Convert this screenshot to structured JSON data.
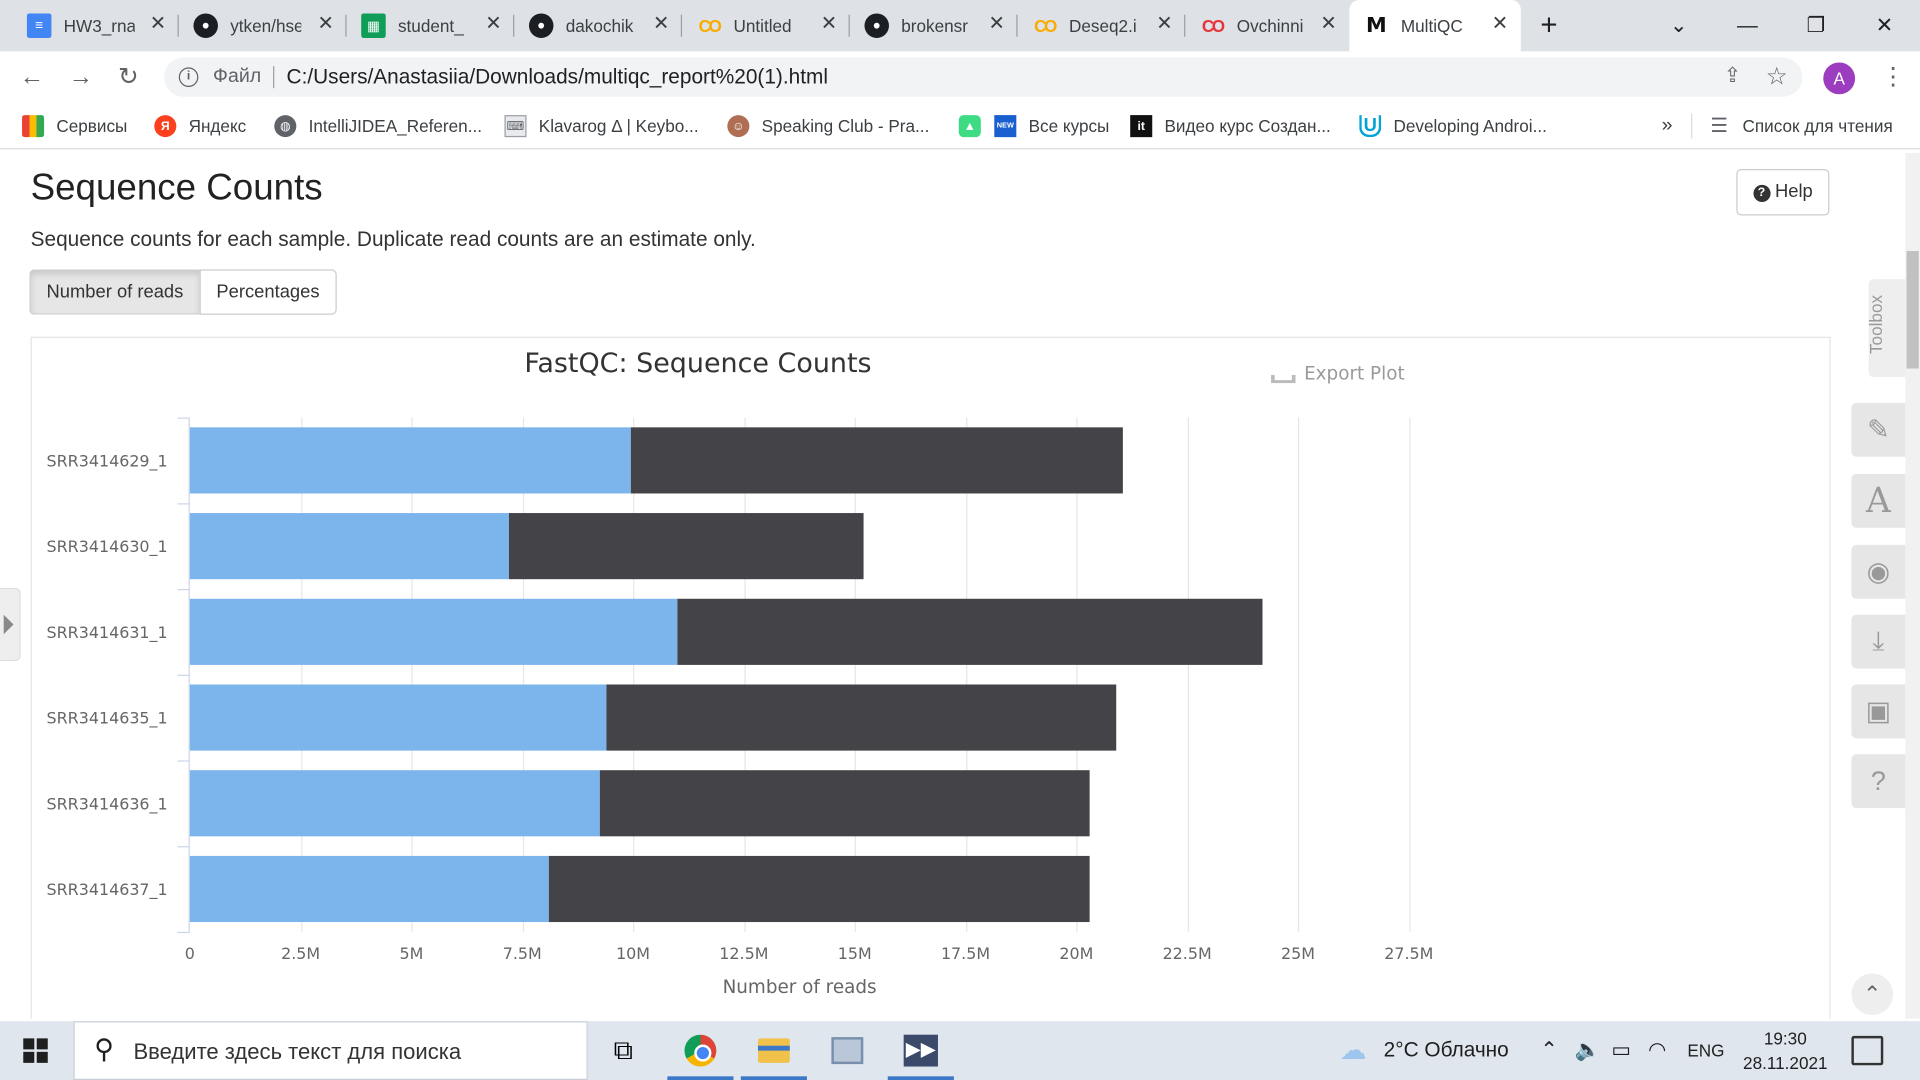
{
  "browser": {
    "tabs": [
      {
        "title": "HW3_rna",
        "favicon": "docs-icon",
        "active": false
      },
      {
        "title": "ytken/hse",
        "favicon": "github-icon",
        "active": false
      },
      {
        "title": "student_",
        "favicon": "sheets-icon",
        "active": false
      },
      {
        "title": "dakochik",
        "favicon": "github-icon",
        "active": false
      },
      {
        "title": "Untitled",
        "favicon": "colab-icon",
        "active": false
      },
      {
        "title": "brokensr",
        "favicon": "github-icon",
        "active": false
      },
      {
        "title": "Deseq2.i",
        "favicon": "colab-icon",
        "active": false
      },
      {
        "title": "Ovchinni",
        "favicon": "colab-icon-red",
        "active": false
      },
      {
        "title": "MultiQC",
        "favicon": "multiqc-icon",
        "active": true
      }
    ],
    "new_tab": "+",
    "address": {
      "scheme_label": "Файл",
      "url": "C:/Users/Anastasiia/Downloads/multiqc_report%20(1).html"
    },
    "profile_initial": "A",
    "bookmarks": [
      {
        "label": "Сервисы",
        "icon": "apps-grid-icon"
      },
      {
        "label": "Яндекс",
        "icon": "yandex-icon"
      },
      {
        "label": "IntelliJIDEA_Referen...",
        "icon": "globe-icon"
      },
      {
        "label": "Klavarog Δ | Keybo...",
        "icon": "keyboard-icon"
      },
      {
        "label": "Speaking Club - Pra...",
        "icon": "speaking-club-icon"
      },
      {
        "label": "",
        "icon": "android-icon"
      },
      {
        "label": "Все курсы",
        "icon": "new-badge-icon"
      },
      {
        "label": "Видео курс Создан...",
        "icon": "it-icon"
      },
      {
        "label": "Developing Androi...",
        "icon": "udacity-icon"
      }
    ],
    "bookmarks_overflow": "»",
    "reading_list": "Список для чтения"
  },
  "page": {
    "title": "Sequence Counts",
    "description": "Sequence counts for each sample. Duplicate read counts are an estimate only.",
    "help_label": "Help",
    "toggle": {
      "active": "Number of reads",
      "inactive": "Percentages"
    },
    "export_label": "Export Plot",
    "toolbox_label": "Toolbox"
  },
  "chart_data": {
    "type": "bar",
    "orientation": "horizontal",
    "stacked": true,
    "title": "FastQC: Sequence Counts",
    "xlabel": "Number of reads",
    "ylabel": "",
    "xlim": [
      0,
      27500000
    ],
    "xticks": [
      "0",
      "2.5M",
      "5M",
      "7.5M",
      "10M",
      "12.5M",
      "15M",
      "17.5M",
      "20M",
      "22.5M",
      "25M",
      "27.5M"
    ],
    "grid": true,
    "categories": [
      "SRR3414629_1",
      "SRR3414630_1",
      "SRR3414631_1",
      "SRR3414635_1",
      "SRR3414636_1",
      "SRR3414637_1"
    ],
    "series": [
      {
        "color": "#7cb5ec",
        "values": [
          9950000,
          7200000,
          11000000,
          9400000,
          9250000,
          8100000
        ]
      },
      {
        "color": "#434348",
        "values": [
          11100000,
          8000000,
          13200000,
          11500000,
          11050000,
          12200000
        ]
      }
    ]
  },
  "taskbar": {
    "search_placeholder": "Введите здесь текст для поиска",
    "weather": "2°C  Облачно",
    "language": "ENG",
    "time": "19:30",
    "date": "28.11.2021"
  }
}
